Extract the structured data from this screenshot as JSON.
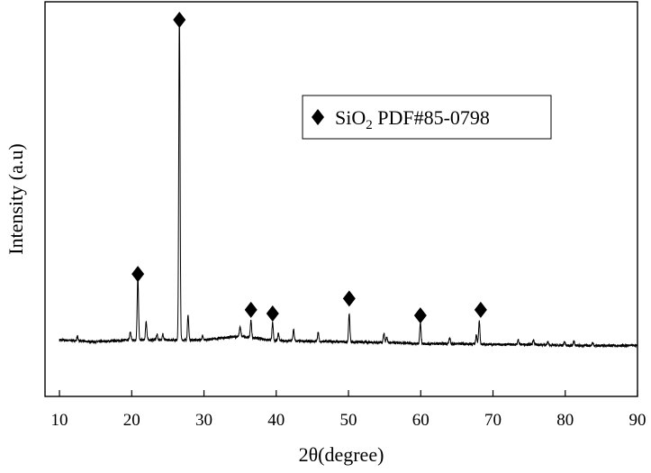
{
  "chart_data": {
    "type": "line",
    "title": "",
    "xlabel": "2θ(degree)",
    "ylabel": "Intensity (a.u)",
    "xlim": [
      8,
      90
    ],
    "ylim": [
      0,
      1
    ],
    "x_ticks": [
      10,
      20,
      30,
      40,
      50,
      60,
      70,
      80,
      90
    ],
    "x_tick_labels": [
      "10",
      "20",
      "30",
      "40",
      "50",
      "60",
      "70",
      "80",
      "90"
    ],
    "y_ticks_shown": false,
    "grid": false,
    "legend": {
      "position": "top-right",
      "entries": [
        {
          "marker": "diamond",
          "text_main": "SiO",
          "text_sub": "2",
          "text_rest": " PDF#85-0798"
        }
      ]
    },
    "series": [
      {
        "baseline": [
          [
            10,
            0.15
          ],
          [
            15,
            0.145
          ],
          [
            20,
            0.15
          ],
          [
            25,
            0.15
          ],
          [
            30,
            0.15
          ],
          [
            35,
            0.16
          ],
          [
            40,
            0.148
          ],
          [
            45,
            0.146
          ],
          [
            50,
            0.145
          ],
          [
            55,
            0.143
          ],
          [
            60,
            0.14
          ],
          [
            65,
            0.14
          ],
          [
            70,
            0.138
          ],
          [
            75,
            0.138
          ],
          [
            80,
            0.135
          ],
          [
            85,
            0.135
          ],
          [
            90,
            0.135
          ]
        ],
        "peaks": [
          [
            12.5,
            0.012
          ],
          [
            19.8,
            0.022
          ],
          [
            20.85,
            0.17
          ],
          [
            22.0,
            0.05
          ],
          [
            23.5,
            0.015
          ],
          [
            24.3,
            0.015
          ],
          [
            26.6,
            0.86
          ],
          [
            27.8,
            0.065
          ],
          [
            29.8,
            0.01
          ],
          [
            35.0,
            0.025
          ],
          [
            36.5,
            0.045
          ],
          [
            39.5,
            0.045
          ],
          [
            40.3,
            0.02
          ],
          [
            42.4,
            0.03
          ],
          [
            45.8,
            0.025
          ],
          [
            50.1,
            0.075
          ],
          [
            54.9,
            0.025
          ],
          [
            55.3,
            0.015
          ],
          [
            59.95,
            0.055
          ],
          [
            64.0,
            0.015
          ],
          [
            67.7,
            0.025
          ],
          [
            68.1,
            0.06
          ],
          [
            73.5,
            0.012
          ],
          [
            75.6,
            0.012
          ],
          [
            77.6,
            0.008
          ],
          [
            79.9,
            0.01
          ],
          [
            81.2,
            0.012
          ],
          [
            83.8,
            0.008
          ]
        ]
      }
    ],
    "markers": [
      {
        "x": 20.85,
        "y": 0.325
      },
      {
        "x": 26.6,
        "y": 1.0
      },
      {
        "x": 36.5,
        "y": 0.23
      },
      {
        "x": 39.5,
        "y": 0.22
      },
      {
        "x": 50.1,
        "y": 0.26
      },
      {
        "x": 59.95,
        "y": 0.215
      },
      {
        "x": 68.3,
        "y": 0.23
      }
    ]
  }
}
